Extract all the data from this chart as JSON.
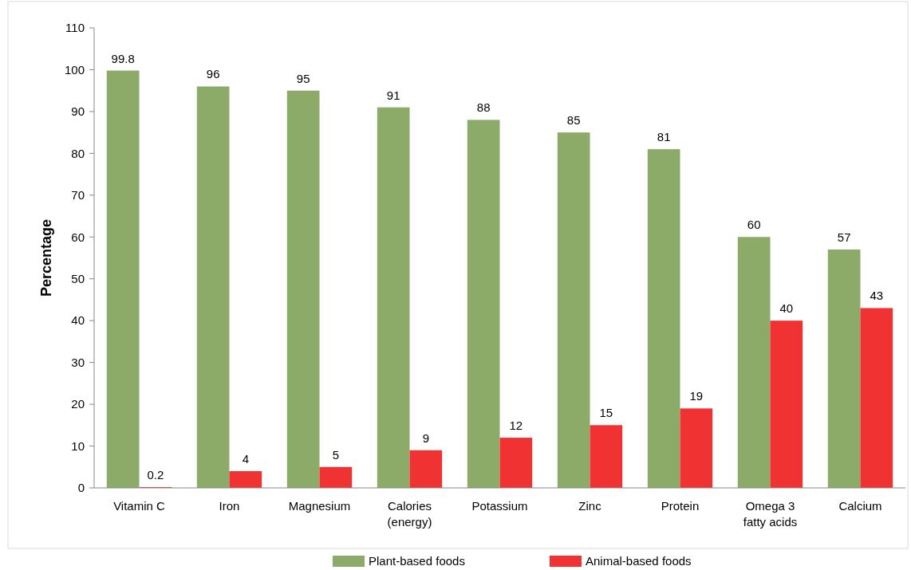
{
  "chart_data": {
    "type": "bar",
    "ylabel": "Percentage",
    "categories": [
      "Vitamin C",
      "Iron",
      "Magnesium",
      "Calories\n(energy)",
      "Potassium",
      "Zinc",
      "Protein",
      "Omega 3\nfatty acids",
      "Calcium"
    ],
    "series": [
      {
        "name": "Plant-based foods",
        "color": "#8caa68",
        "values": [
          99.8,
          96,
          95,
          91,
          88,
          85,
          81,
          60,
          57
        ]
      },
      {
        "name": "Animal-based foods",
        "color": "#f03232",
        "values": [
          0.2,
          4,
          5,
          9,
          12,
          15,
          19,
          40,
          43
        ]
      }
    ],
    "ylim": [
      0,
      110
    ],
    "yticks": [
      0,
      10,
      20,
      30,
      40,
      50,
      60,
      70,
      80,
      90,
      100,
      110
    ],
    "data_labels": true,
    "legend": "bottom",
    "grid": false
  }
}
